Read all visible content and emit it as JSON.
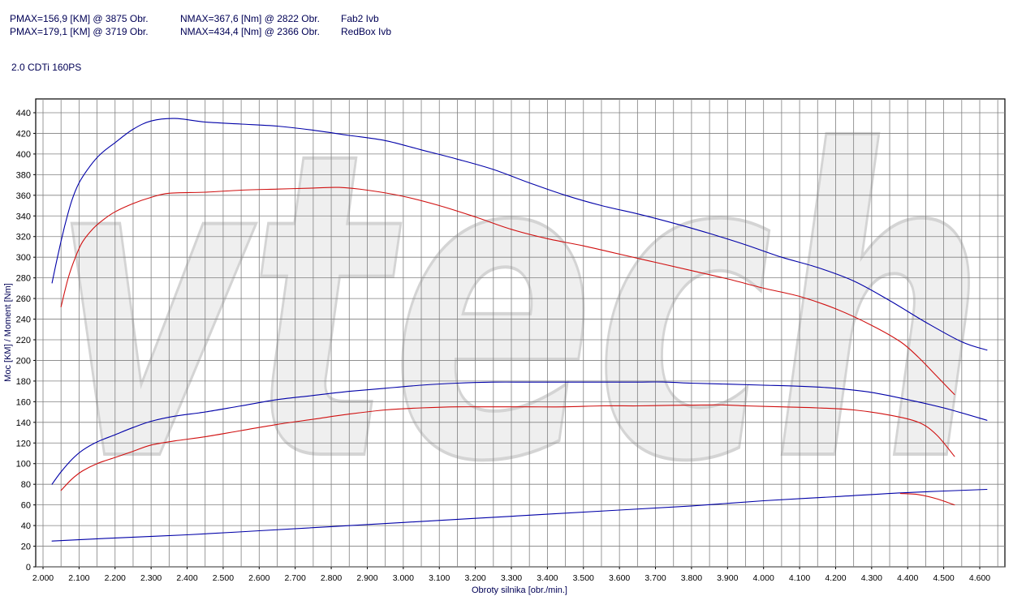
{
  "header": {
    "line1": {
      "pmax": "PMAX=156,9 [KM] @ 3875 Obr.",
      "nmax": "NMAX=367,6 [Nm] @ 2822 Obr.",
      "name": "Fab2 Ivb"
    },
    "line2": {
      "pmax": "PMAX=179,1 [KM] @ 3719 Obr.",
      "nmax": "NMAX=434,4 [Nm] @ 2366 Obr.",
      "name": "RedBox Ivb"
    },
    "engine": "2.0 CDTi 160PS"
  },
  "watermark": "vtech",
  "chart_data": {
    "type": "line",
    "xlabel": "Obroty silnika [obr./min.]",
    "ylabel": "Moc [KM] / Moment [Nm]",
    "xlim": [
      2000,
      4680
    ],
    "ylim": [
      0,
      450
    ],
    "xticks": [
      2000,
      2100,
      2200,
      2300,
      2400,
      2500,
      2600,
      2700,
      2800,
      2900,
      3000,
      3100,
      3200,
      3300,
      3400,
      3500,
      3600,
      3700,
      3800,
      3900,
      4000,
      4100,
      4200,
      4300,
      4400,
      4500,
      4600
    ],
    "xtick_labels": [
      "2.000",
      "2.100",
      "2.200",
      "2.300",
      "2.400",
      "2.500",
      "2.600",
      "2.700",
      "2.800",
      "2.900",
      "3.000",
      "3.100",
      "3.200",
      "3.300",
      "3.400",
      "3.500",
      "3.600",
      "3.700",
      "3.800",
      "3.900",
      "4.000",
      "4.100",
      "4.200",
      "4.300",
      "4.400",
      "4.500",
      "4.600"
    ],
    "yticks": [
      0,
      20,
      40,
      60,
      80,
      100,
      120,
      140,
      160,
      180,
      200,
      220,
      240,
      260,
      280,
      300,
      320,
      340,
      360,
      380,
      400,
      420,
      440
    ],
    "grid": true,
    "colors": {
      "blue": "#0000a8",
      "red": "#d01010",
      "grid": "#808080",
      "watermark": "#e6e6e6"
    },
    "series": [
      {
        "name": "RedBox Ivb",
        "color": "#0000a8",
        "x": [
          2025,
          2040,
          2060,
          2080,
          2100,
          2130,
          2160,
          2200,
          2250,
          2300,
          2366,
          2450,
          2550,
          2650,
          2750,
          2850,
          2950,
          3050,
          3150,
          3250,
          3350,
          3450,
          3550,
          3650,
          3750,
          3850,
          3950,
          4050,
          4150,
          4250,
          4350,
          4450,
          4550,
          4620
        ],
        "y": [
          275,
          300,
          330,
          355,
          372,
          388,
          400,
          411,
          424,
          432,
          434.4,
          431,
          429,
          427,
          423,
          418,
          413,
          404,
          395,
          385,
          372,
          360,
          350,
          342,
          333,
          323,
          312,
          300,
          290,
          277,
          258,
          237,
          218,
          210
        ]
      },
      {
        "name": "Fab2 Ivb",
        "color": "#d01010",
        "x": [
          2050,
          2070,
          2090,
          2110,
          2140,
          2170,
          2200,
          2250,
          2300,
          2350,
          2450,
          2550,
          2650,
          2750,
          2822,
          2900,
          3000,
          3100,
          3200,
          3300,
          3400,
          3500,
          3600,
          3700,
          3800,
          3900,
          4000,
          4100,
          4200,
          4300,
          4380,
          4430,
          4480,
          4530
        ],
        "y": [
          252,
          280,
          300,
          315,
          328,
          337,
          344,
          352,
          358,
          362,
          363,
          365,
          366,
          367,
          367.6,
          365,
          359,
          350,
          339,
          327,
          318,
          311,
          303,
          295,
          287,
          279,
          270,
          262,
          250,
          234,
          218,
          203,
          185,
          167
        ]
      },
      {
        "name": "RedBox Ivb",
        "color": "#0000a8",
        "x": [
          2025,
          2050,
          2080,
          2110,
          2150,
          2200,
          2250,
          2300,
          2366,
          2450,
          2550,
          2650,
          2750,
          2850,
          2950,
          3050,
          3150,
          3250,
          3350,
          3450,
          3550,
          3650,
          3719,
          3800,
          3900,
          4000,
          4100,
          4200,
          4300,
          4400,
          4500,
          4620
        ],
        "y": [
          80,
          92,
          104,
          113,
          121,
          128,
          135,
          141,
          146,
          150,
          156,
          162,
          166,
          170,
          173,
          176,
          178,
          179,
          179,
          179,
          179,
          179,
          179.1,
          178,
          177,
          176,
          175,
          173,
          169,
          162,
          154,
          142
        ]
      },
      {
        "name": "Fab2 Ivb",
        "color": "#d01010",
        "x": [
          2050,
          2080,
          2110,
          2150,
          2200,
          2250,
          2300,
          2366,
          2450,
          2550,
          2650,
          2750,
          2850,
          2950,
          3050,
          3150,
          3250,
          3350,
          3450,
          3550,
          3650,
          3750,
          3875,
          3950,
          4050,
          4150,
          4250,
          4350,
          4430,
          4480,
          4530
        ],
        "y": [
          74,
          85,
          93,
          100,
          106,
          112,
          118,
          122,
          126,
          132,
          138,
          143,
          148,
          152,
          154,
          155,
          155,
          155,
          155,
          156,
          156,
          156.5,
          156.9,
          156,
          155,
          154,
          152,
          147,
          140,
          128,
          107
        ]
      },
      {
        "name": "",
        "color": "#0000a8",
        "x": [
          2025,
          2200,
          2400,
          2600,
          2800,
          3000,
          3200,
          3400,
          3600,
          3800,
          4000,
          4200,
          4400,
          4620
        ],
        "y": [
          25,
          28,
          31,
          35,
          39,
          43,
          47,
          51,
          55,
          59,
          64,
          68,
          72,
          75
        ]
      },
      {
        "name": "",
        "color": "#d01010",
        "x": [
          4380,
          4430,
          4480,
          4530
        ],
        "y": [
          71,
          70,
          66,
          60
        ]
      }
    ]
  }
}
